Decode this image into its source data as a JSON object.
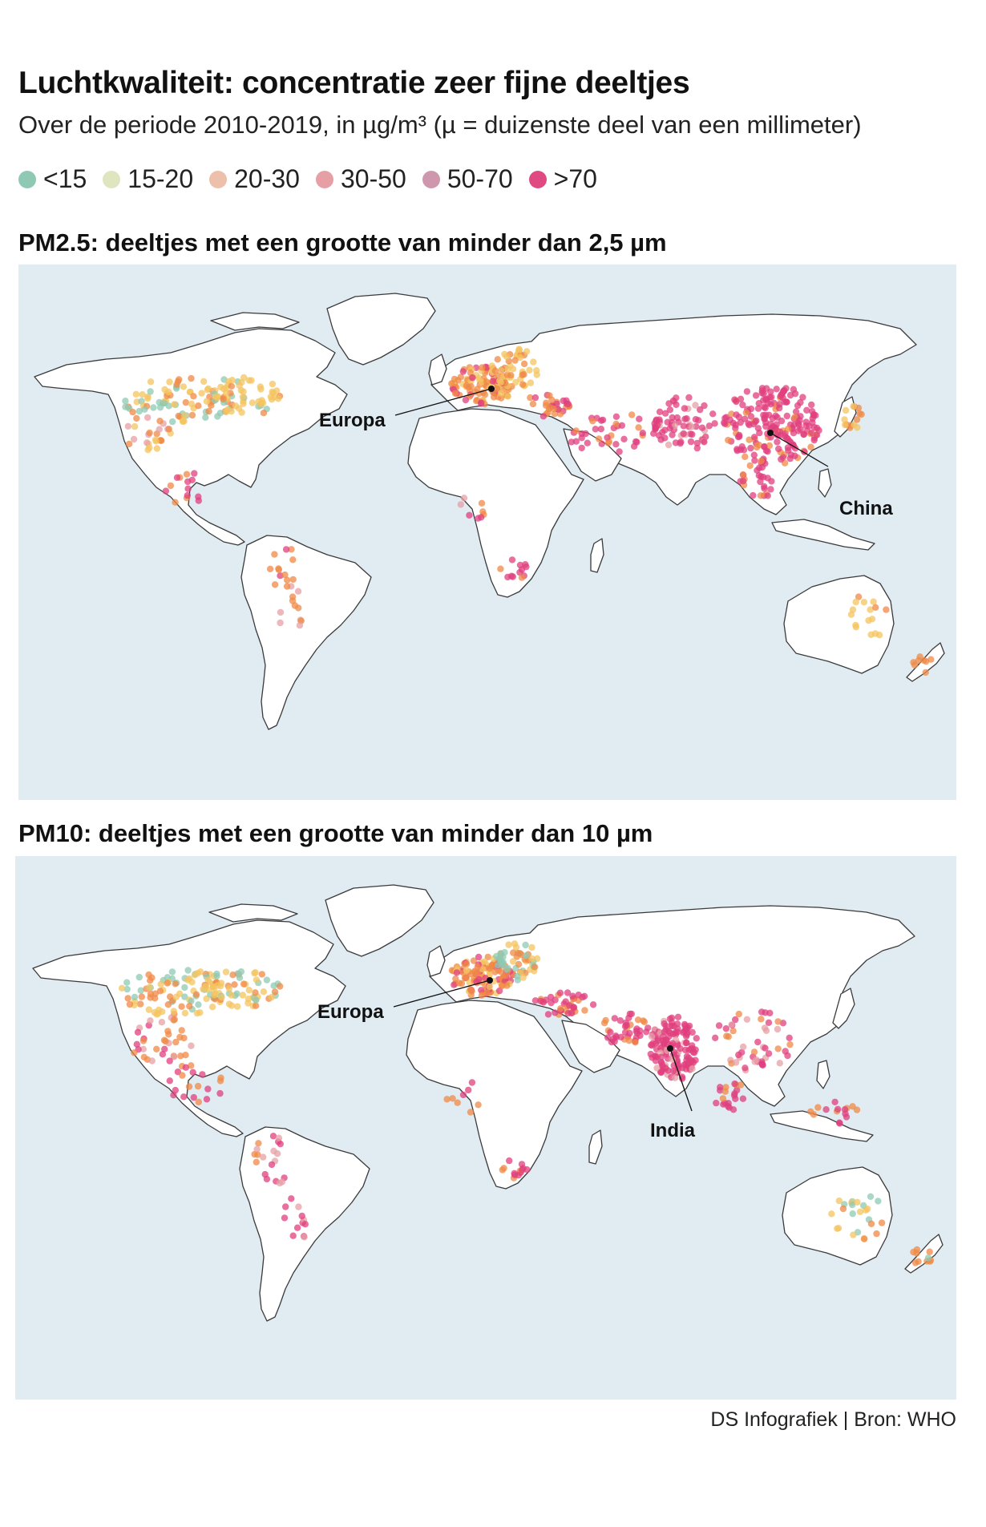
{
  "title": "Luchtkwaliteit: concentratie zeer fijne deeltjes",
  "subtitle": "Over de periode 2010-2019, in µg/m³ (µ = duizenste deel van een millimeter)",
  "legend": [
    {
      "label": "<15",
      "color": "#8fc9b3"
    },
    {
      "label": "15-20",
      "color": "#dfe6bf"
    },
    {
      "label": "20-30",
      "color": "#ecc0aa"
    },
    {
      "label": "30-50",
      "color": "#e6a0a5"
    },
    {
      "label": "50-70",
      "color": "#cf97ad"
    },
    {
      "label": ">70",
      "color": "#e04a82"
    }
  ],
  "maps": [
    {
      "title": "PM2.5: deeltjes met een grootte van minder dan 2,5 µm",
      "callouts": [
        "Europa",
        "China"
      ]
    },
    {
      "title": "PM10: deeltjes met een grootte van minder dan 10 µm",
      "callouts": [
        "Europa",
        "India"
      ]
    }
  ],
  "source": "DS Infografiek | Bron: WHO",
  "colors": {
    "ocean": "#e0ebf2",
    "land": "#ffffff",
    "border": "#3a3a3a",
    "orange": "#f08a45",
    "yellow": "#f4c460",
    "green": "#8fc9b3",
    "magenta": "#e03f7e"
  }
}
